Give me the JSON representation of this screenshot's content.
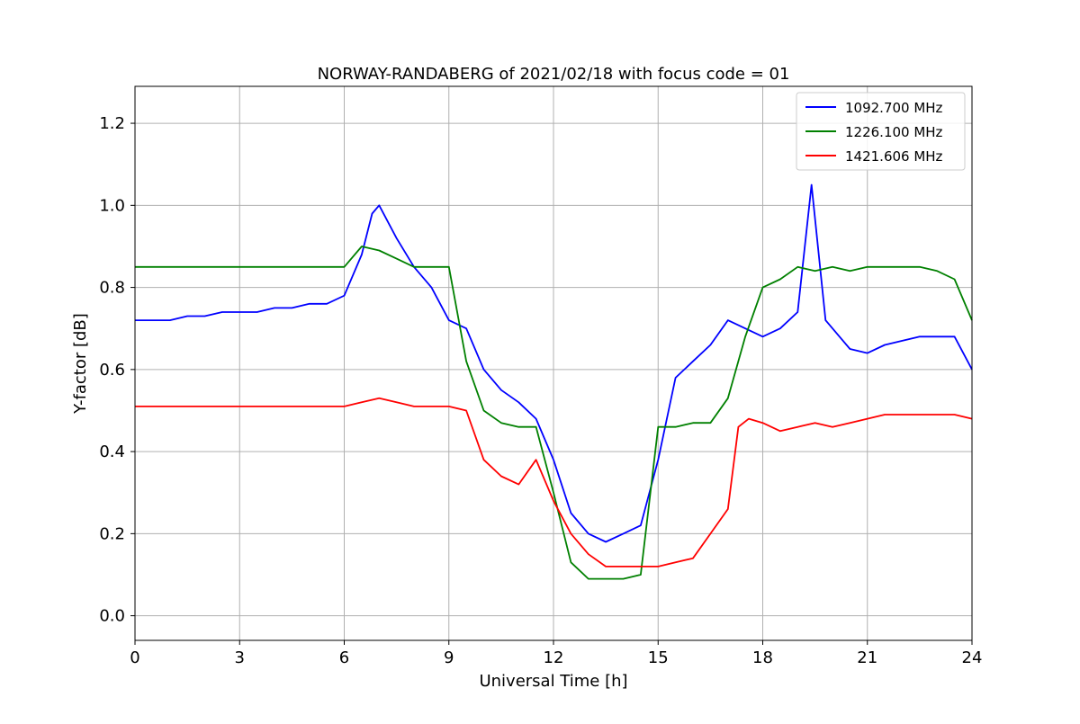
{
  "chart_data": {
    "type": "line",
    "title": "NORWAY-RANDABERG of 2021/02/18 with focus code = 01",
    "xlabel": "Universal Time [h]",
    "ylabel": "Y-factor [dB]",
    "xlim": [
      0,
      24
    ],
    "ylim": [
      -0.06,
      1.29
    ],
    "xticks": [
      0,
      3,
      6,
      9,
      12,
      15,
      18,
      21,
      24
    ],
    "yticks": [
      0.0,
      0.2,
      0.4,
      0.6,
      0.8,
      1.0,
      1.2
    ],
    "ytick_labels": [
      "0.0",
      "0.2",
      "0.4",
      "0.6",
      "0.8",
      "1.0",
      "1.2"
    ],
    "grid": true,
    "legend_position": "top-right",
    "series": [
      {
        "name": "1092.700 MHz",
        "color": "#0000ff",
        "x": [
          0,
          0.5,
          1,
          1.5,
          2,
          2.5,
          2.7,
          3,
          3.5,
          4,
          4.5,
          5,
          5.5,
          6,
          6.5,
          6.8,
          7,
          7.5,
          8,
          8.5,
          9,
          9.5,
          10,
          10.5,
          11,
          11.5,
          12,
          12.5,
          13,
          13.5,
          14,
          14.5,
          15,
          15.5,
          16,
          16.5,
          17,
          17.5,
          18,
          18.5,
          19,
          19.4,
          19.8,
          20.5,
          21,
          21.5,
          22,
          22.5,
          23,
          23.5,
          24
        ],
        "y": [
          0.72,
          0.72,
          0.72,
          0.73,
          0.73,
          0.74,
          0.74,
          0.74,
          0.74,
          0.75,
          0.75,
          0.76,
          0.76,
          0.78,
          0.88,
          0.98,
          1.0,
          0.92,
          0.85,
          0.8,
          0.72,
          0.7,
          0.6,
          0.55,
          0.52,
          0.48,
          0.38,
          0.25,
          0.2,
          0.18,
          0.2,
          0.22,
          0.38,
          0.58,
          0.62,
          0.66,
          0.72,
          0.7,
          0.68,
          0.7,
          0.74,
          1.05,
          0.72,
          0.65,
          0.64,
          0.66,
          0.67,
          0.68,
          0.68,
          0.68,
          0.6
        ]
      },
      {
        "name": "1226.100 MHz",
        "color": "#008000",
        "x": [
          0,
          1,
          2,
          3,
          4,
          5,
          6,
          6.5,
          7,
          7.5,
          8,
          8.5,
          9,
          9.5,
          10,
          10.5,
          11,
          11.5,
          12,
          12.5,
          13,
          13.5,
          14,
          14.5,
          15,
          15.5,
          16,
          16.5,
          17,
          17.5,
          18,
          18.5,
          19,
          19.5,
          20,
          20.5,
          21,
          21.5,
          22,
          22.5,
          23,
          23.5,
          24
        ],
        "y": [
          0.85,
          0.85,
          0.85,
          0.85,
          0.85,
          0.85,
          0.85,
          0.9,
          0.89,
          0.87,
          0.85,
          0.85,
          0.85,
          0.62,
          0.5,
          0.47,
          0.46,
          0.46,
          0.3,
          0.13,
          0.09,
          0.09,
          0.09,
          0.1,
          0.46,
          0.46,
          0.47,
          0.47,
          0.53,
          0.68,
          0.8,
          0.82,
          0.85,
          0.84,
          0.85,
          0.84,
          0.85,
          0.85,
          0.85,
          0.85,
          0.84,
          0.82,
          0.72
        ]
      },
      {
        "name": "1421.606 MHz",
        "color": "#ff0000",
        "x": [
          0,
          1,
          2,
          3,
          4,
          5,
          6,
          6.5,
          7,
          7.5,
          8,
          8.5,
          9,
          9.5,
          10,
          10.5,
          11,
          11.5,
          12,
          12.5,
          13,
          13.5,
          14,
          14.5,
          15,
          15.5,
          16,
          16.5,
          17,
          17.3,
          17.6,
          18,
          18.5,
          19,
          19.5,
          20,
          20.5,
          21,
          21.5,
          22,
          22.5,
          23,
          23.5,
          24
        ],
        "y": [
          0.51,
          0.51,
          0.51,
          0.51,
          0.51,
          0.51,
          0.51,
          0.52,
          0.53,
          0.52,
          0.51,
          0.51,
          0.51,
          0.5,
          0.38,
          0.34,
          0.32,
          0.38,
          0.28,
          0.2,
          0.15,
          0.12,
          0.12,
          0.12,
          0.12,
          0.13,
          0.14,
          0.2,
          0.26,
          0.46,
          0.48,
          0.47,
          0.45,
          0.46,
          0.47,
          0.46,
          0.47,
          0.48,
          0.49,
          0.49,
          0.49,
          0.49,
          0.49,
          0.48
        ]
      }
    ]
  }
}
